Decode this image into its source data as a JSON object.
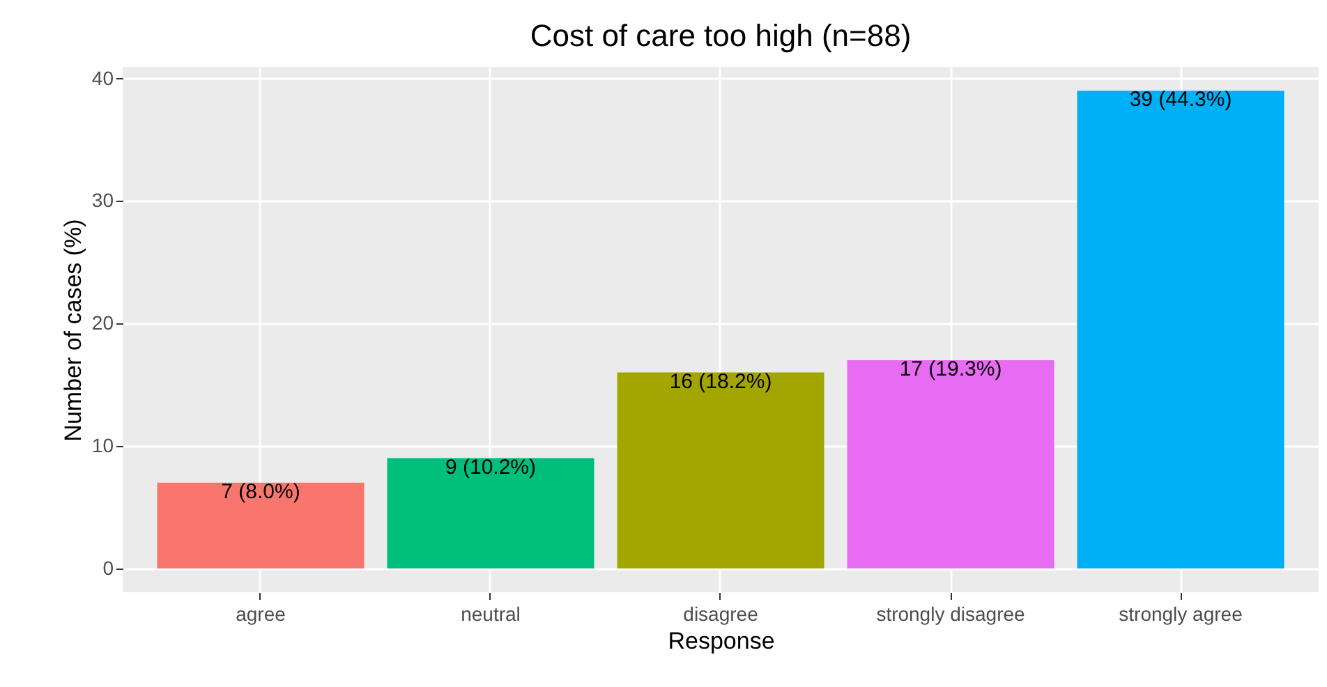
{
  "chart_data": {
    "type": "bar",
    "title": "Cost of care too high (n=88)",
    "xlabel": "Response",
    "ylabel": "Number of cases (%)",
    "categories": [
      "agree",
      "neutral",
      "disagree",
      "strongly disagree",
      "strongly agree"
    ],
    "values": [
      7,
      9,
      16,
      17,
      39
    ],
    "colors": [
      "#f8766d",
      "#00bf7d",
      "#a3a500",
      "#e76bf3",
      "#00b0f6"
    ],
    "value_labels": [
      "7 (8.0%)",
      "9 (10.2%)",
      "16 (18.2%)",
      "17 (19.3%)",
      "39 (44.3%)"
    ],
    "ylim": [
      -1.95,
      40.95
    ],
    "yticks": [
      0,
      10,
      20,
      30,
      40
    ],
    "grid": true
  }
}
